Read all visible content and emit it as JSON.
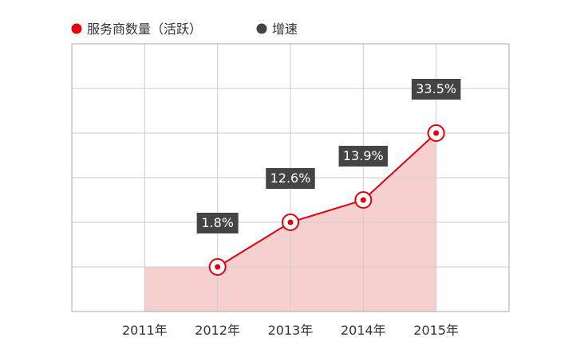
{
  "chart_data": {
    "type": "area",
    "title": "",
    "xlabel": "",
    "ylabel": "",
    "categories": [
      "2011年",
      "2012年",
      "2013年",
      "2014年",
      "2015年"
    ],
    "series": [
      {
        "name": "服务商数量（活跃）",
        "color": "#e0000f",
        "fill": "#f6cfcf",
        "marker": "circle-dot",
        "values": [
          1.0,
          1.0,
          2.0,
          2.5,
          4.0
        ]
      },
      {
        "name": "增速",
        "color": "#444444",
        "values": [
          null,
          1.8,
          12.6,
          13.9,
          33.5
        ],
        "data_labels": [
          "",
          "1.8%",
          "12.6%",
          "13.9%",
          "33.5%"
        ]
      }
    ],
    "ylim": [
      0,
      6
    ],
    "y_tick_labels": false,
    "grid": true,
    "legend_position": "top-left"
  },
  "colors": {
    "accent": "#e0000f",
    "area_fill": "#f6cfcf",
    "label_box": "#444444",
    "grid": "#cccccc"
  }
}
